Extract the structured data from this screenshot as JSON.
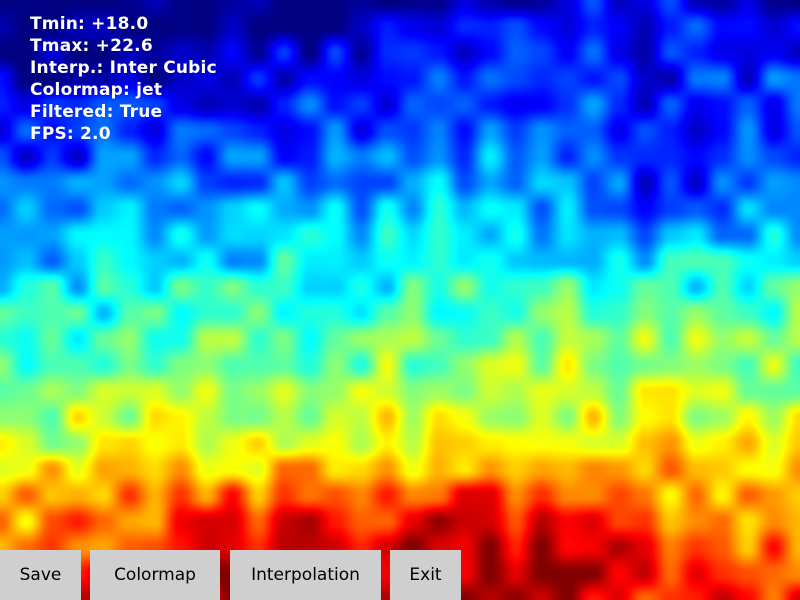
{
  "overlay": {
    "tmin": "Tmin: +18.0",
    "tmax": "Tmax: +22.6",
    "interp": "Interp.: Inter Cubic",
    "colormap": "Colormap: jet",
    "filtered": "Filtered: True",
    "fps": "FPS: 2.0"
  },
  "toolbar": {
    "save_label": "Save",
    "colormap_label": "Colormap",
    "interpolation_label": "Interpolation",
    "exit_label": "Exit"
  },
  "colors": {
    "button_bg": "#cfcfcf",
    "text_overlay": "#ffffff"
  }
}
